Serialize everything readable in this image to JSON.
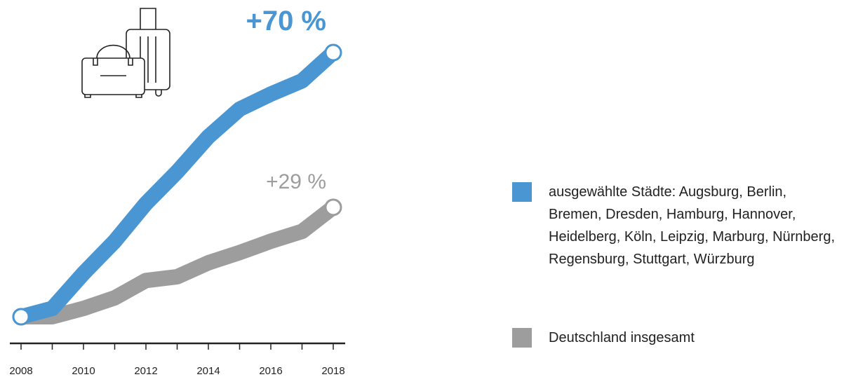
{
  "chart_data": {
    "type": "line",
    "x": [
      2008,
      2009,
      2010,
      2011,
      2012,
      2013,
      2014,
      2015,
      2016,
      2017,
      2018
    ],
    "series": [
      {
        "name": "ausgewählte Städte: Augsburg, Berlin, Bremen, Dresden, Hamburg, Hannover, Heidelberg, Köln, Leipzig, Marburg, Nürnberg, Regensburg, Stuttgart, Würzburg",
        "color": "#4a96d2",
        "values": [
          0,
          2.2,
          11.5,
          20,
          30,
          38.4,
          47.7,
          55,
          59,
          62.5,
          70
        ],
        "end_label": "+70 %"
      },
      {
        "name": "Deutschland insgesamt",
        "color": "#9d9d9d",
        "values": [
          0,
          0,
          2.2,
          5,
          9.6,
          10.6,
          14.3,
          17,
          20,
          22.6,
          29
        ],
        "end_label": "+29 %"
      }
    ],
    "xlim": [
      2008,
      2018
    ],
    "xticks": [
      2008,
      2010,
      2012,
      2014,
      2016,
      2018
    ],
    "minor_xticks": [
      2009,
      2011,
      2013,
      2015,
      2017
    ],
    "ylim": [
      0,
      70
    ],
    "legend": "right"
  }
}
